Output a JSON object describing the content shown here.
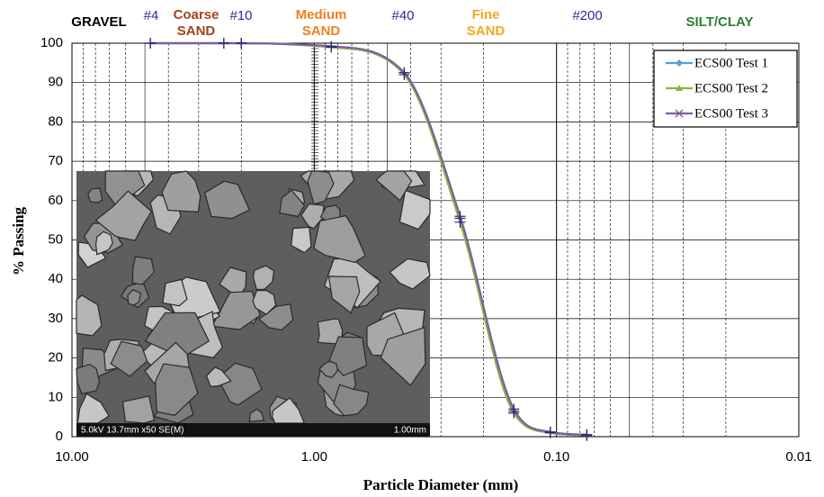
{
  "chart_data": {
    "type": "line",
    "x_label": "Particle Diameter (mm)",
    "y_label": "% Passing",
    "x": [
      4.75,
      2.36,
      2.0,
      0.85,
      0.425,
      0.25,
      0.15,
      0.106,
      0.075
    ],
    "series": [
      {
        "name": "ECS00 Test 1",
        "color": "#5b9bd5",
        "marker": "diamond",
        "values": [
          100,
          100,
          100,
          99,
          92.5,
          55.5,
          6.5,
          1,
          0.5
        ]
      },
      {
        "name": "ECS00 Test 2",
        "color": "#8db33a",
        "marker": "triangle",
        "values": [
          100,
          100,
          100,
          99,
          92,
          54.5,
          6,
          1,
          0.3
        ]
      },
      {
        "name": "ECS00 Test 3",
        "color": "#7b5ea7",
        "marker": "x",
        "values": [
          100,
          100,
          100,
          99.2,
          92.5,
          56,
          7,
          1.2,
          0.5
        ]
      }
    ],
    "log_x": true,
    "xlim": [
      10,
      0.01
    ],
    "xticks": [
      {
        "value": 10,
        "label": "10.00"
      },
      {
        "value": 1,
        "label": "1.00"
      },
      {
        "value": 0.1,
        "label": "0.10"
      },
      {
        "value": 0.01,
        "label": "0.01"
      }
    ],
    "ylim": [
      0,
      100
    ],
    "yticks": [
      0,
      10,
      20,
      30,
      40,
      50,
      60,
      70,
      80,
      90,
      100
    ],
    "grid": true,
    "legend": "top-right",
    "zones": [
      {
        "lines": [
          "GRAVEL"
        ],
        "color": "#000000"
      },
      {
        "lines": [
          "Coarse",
          "SAND"
        ],
        "color": "#a0441c"
      },
      {
        "lines": [
          "Medium",
          "SAND"
        ],
        "color": "#f07f1f"
      },
      {
        "lines": [
          "Fine",
          "SAND"
        ],
        "color": "#f5a623"
      },
      {
        "lines": [
          "SILT/CLAY"
        ],
        "color": "#2e7d32"
      }
    ],
    "sieves": [
      "#4",
      "#10",
      "#40",
      "#200"
    ],
    "image_caption": [
      "5.0kV 13.7mm x50 SE(M)",
      "1.00mm"
    ]
  }
}
